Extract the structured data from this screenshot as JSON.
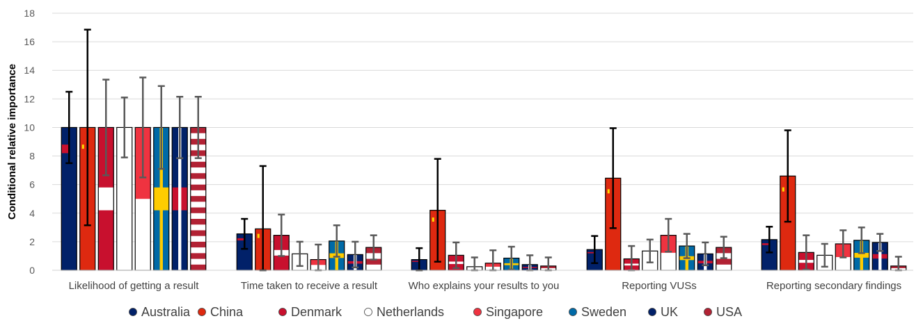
{
  "chart_data": {
    "type": "bar",
    "ylabel": "Conditional relative importance",
    "xlabel": "",
    "ylim": [
      0,
      18
    ],
    "yticks": [
      0,
      2,
      4,
      6,
      8,
      10,
      12,
      14,
      16,
      18
    ],
    "grid": true,
    "legend_position": "bottom",
    "categories": [
      "Likelihood of getting a result",
      "Time taken to receive a result",
      "Who explains your results to you",
      "Reporting VUSs",
      "Reporting secondary findings"
    ],
    "series": [
      {
        "name": "Australia",
        "color": "#012169",
        "values": [
          10,
          2.55,
          0.75,
          1.45,
          2.15
        ],
        "error_high": [
          12.5,
          3.6,
          1.55,
          2.4,
          3.05
        ]
      },
      {
        "name": "China",
        "color": "#DE2910",
        "values": [
          10,
          2.9,
          4.2,
          6.45,
          6.6
        ],
        "error_high": [
          16.85,
          7.3,
          7.8,
          9.95,
          9.8
        ]
      },
      {
        "name": "Denmark",
        "color": "#C8102E",
        "values": [
          10,
          2.45,
          1.05,
          0.8,
          1.25
        ],
        "error_high": [
          13.35,
          3.9,
          1.95,
          1.7,
          2.45
        ]
      },
      {
        "name": "Netherlands",
        "color": "#FFFFFF",
        "values": [
          10,
          1.15,
          0.25,
          1.35,
          1.05
        ],
        "error_high": [
          12.1,
          2.0,
          0.9,
          2.15,
          1.85
        ]
      },
      {
        "name": "Singapore",
        "color": "#EF3340",
        "values": [
          10,
          0.75,
          0.5,
          2.45,
          1.85
        ],
        "error_high": [
          13.5,
          1.8,
          1.4,
          3.6,
          2.8
        ]
      },
      {
        "name": "Sweden",
        "color": "#006AA7",
        "values": [
          10,
          2.05,
          0.85,
          1.7,
          2.1
        ],
        "error_high": [
          12.9,
          3.15,
          1.65,
          2.55,
          3.0
        ]
      },
      {
        "name": "UK",
        "color": "#012169",
        "values": [
          10,
          1.1,
          0.4,
          1.15,
          1.95
        ],
        "error_high": [
          12.15,
          2.0,
          1.05,
          1.95,
          2.55
        ]
      },
      {
        "name": "USA",
        "color": "#B22234",
        "values": [
          10,
          1.6,
          0.3,
          1.6,
          0.3
        ],
        "error_high": [
          12.15,
          2.45,
          0.9,
          2.35,
          0.95
        ]
      }
    ]
  }
}
